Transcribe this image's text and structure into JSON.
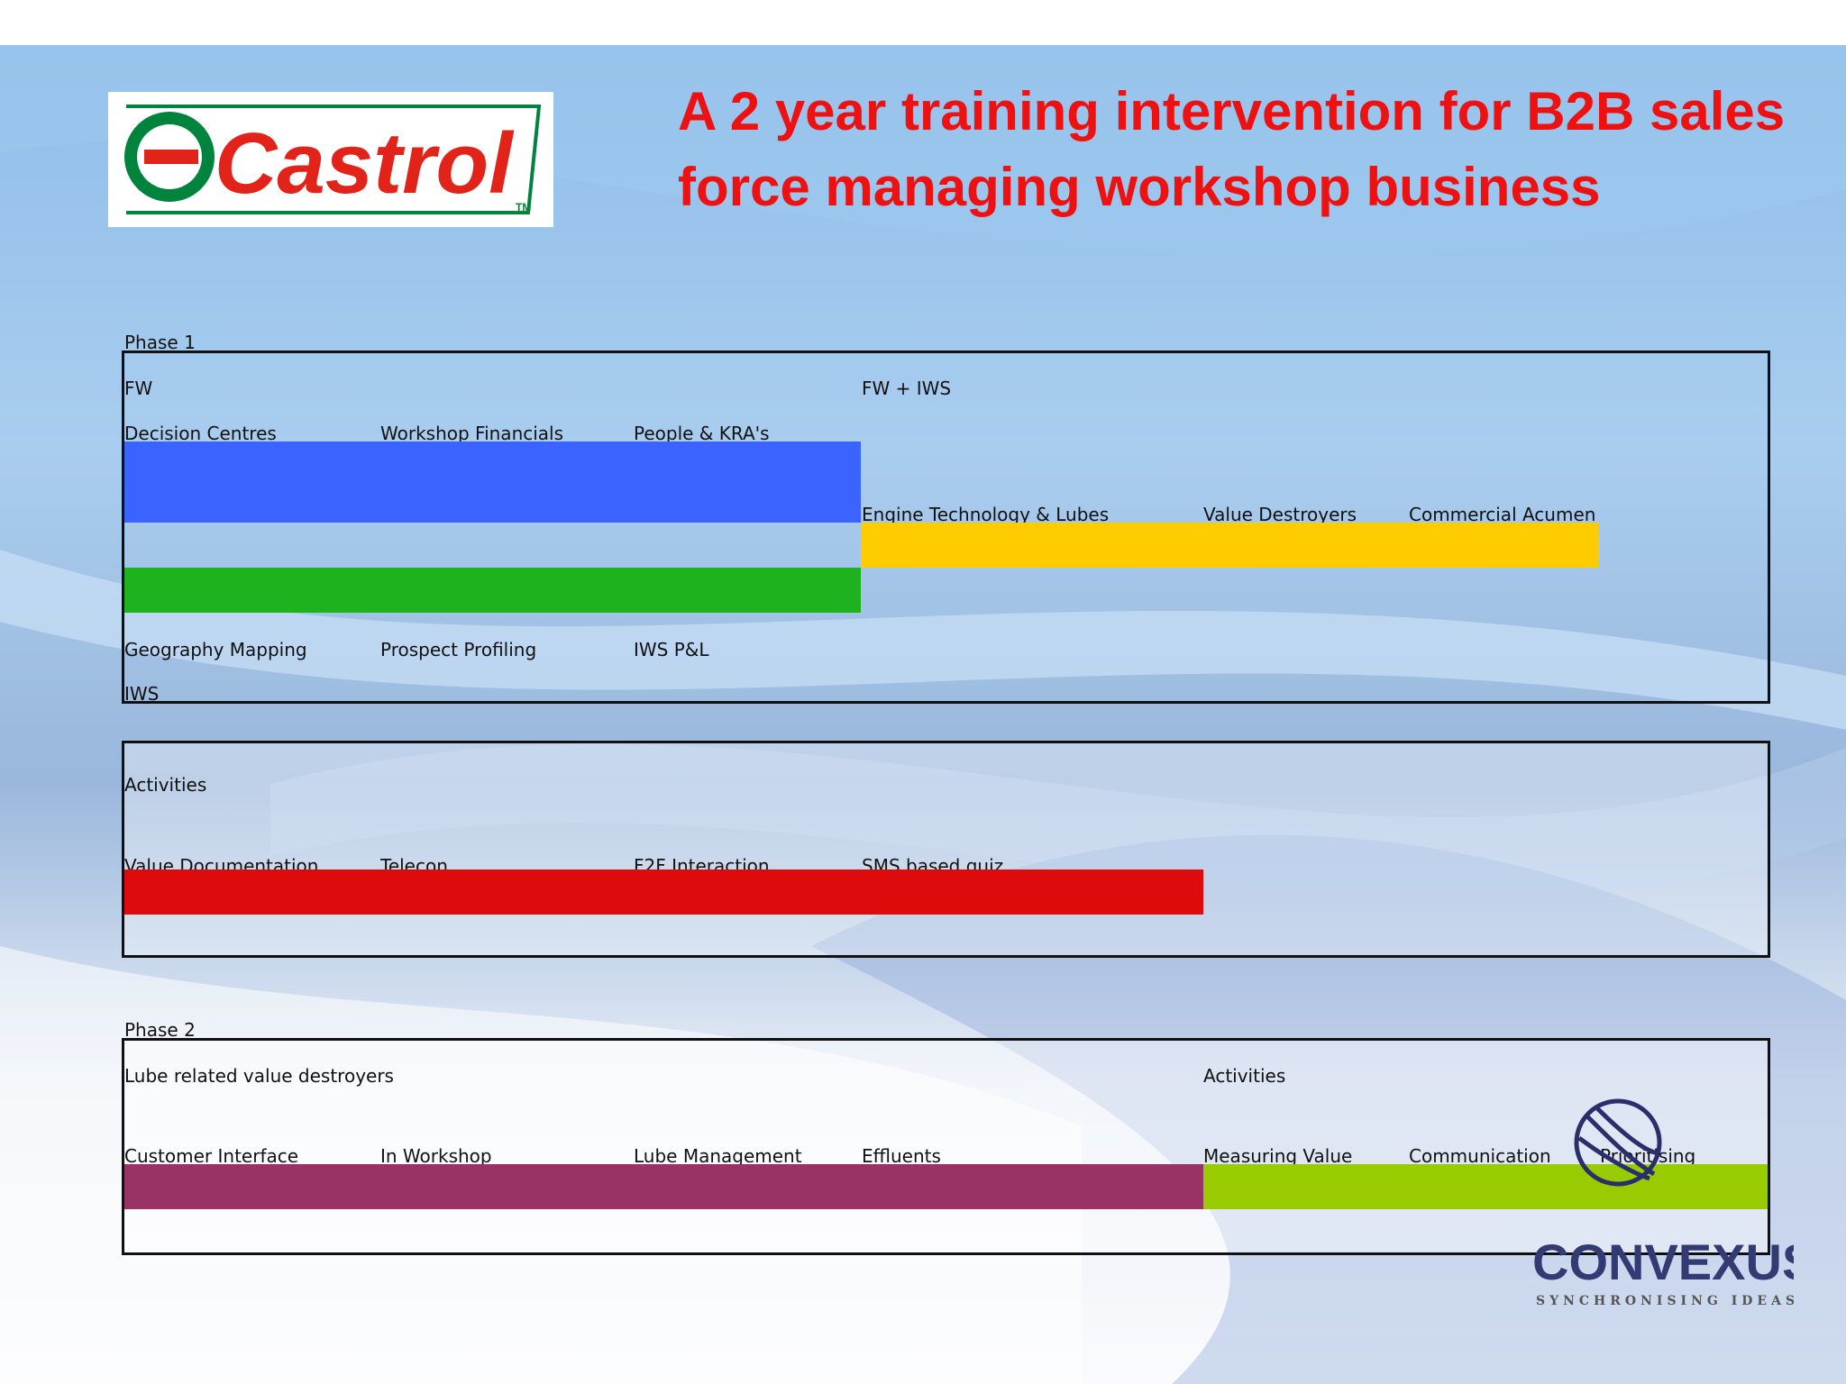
{
  "title": "A 2 year training intervention for B2B sales force managing workshop business",
  "logo": {
    "text": "Castrol",
    "tm": "TM",
    "colors": {
      "red": "#e2231a",
      "green": "#00843d"
    }
  },
  "phase1": {
    "heading": "Phase 1",
    "fw_label": "FW",
    "fw_iws_label": "FW + IWS",
    "iws_label": "IWS",
    "fw_topics": [
      "Decision Centres",
      "Workshop Financials",
      "People & KRA's"
    ],
    "fw_iws_topics": [
      "Engine Technology & Lubes",
      "Value Destroyers",
      "Commercial Acumen"
    ],
    "iws_topics": [
      "Geography Mapping",
      "Prospect Profiling",
      "IWS P&L"
    ]
  },
  "activities1": {
    "heading": "Activities",
    "items": [
      "Value Documentation",
      "Telecon",
      "F2F Interaction",
      "SMS based quiz"
    ]
  },
  "phase2": {
    "heading": "Phase 2",
    "lube_label": "Lube related value destroyers",
    "activities_label": "Activities",
    "lube_topics": [
      "Customer Interface",
      "In Workshop",
      "Lube Management",
      "Effluents"
    ],
    "activity_topics": [
      "Measuring Value",
      "Communication",
      "Prioritising"
    ]
  },
  "colors": {
    "blue_bar": "#3a63ff",
    "green_bar": "#1fb21f",
    "yellow_bar": "#ffcc00",
    "red_bar": "#dd0b0b",
    "purple_bar": "#993366",
    "lime_bar": "#99cc00",
    "title_red": "#ee1111"
  },
  "brand": {
    "name": "CONVEXUS",
    "tagline": "SYNCHRONISING IDEAS"
  }
}
